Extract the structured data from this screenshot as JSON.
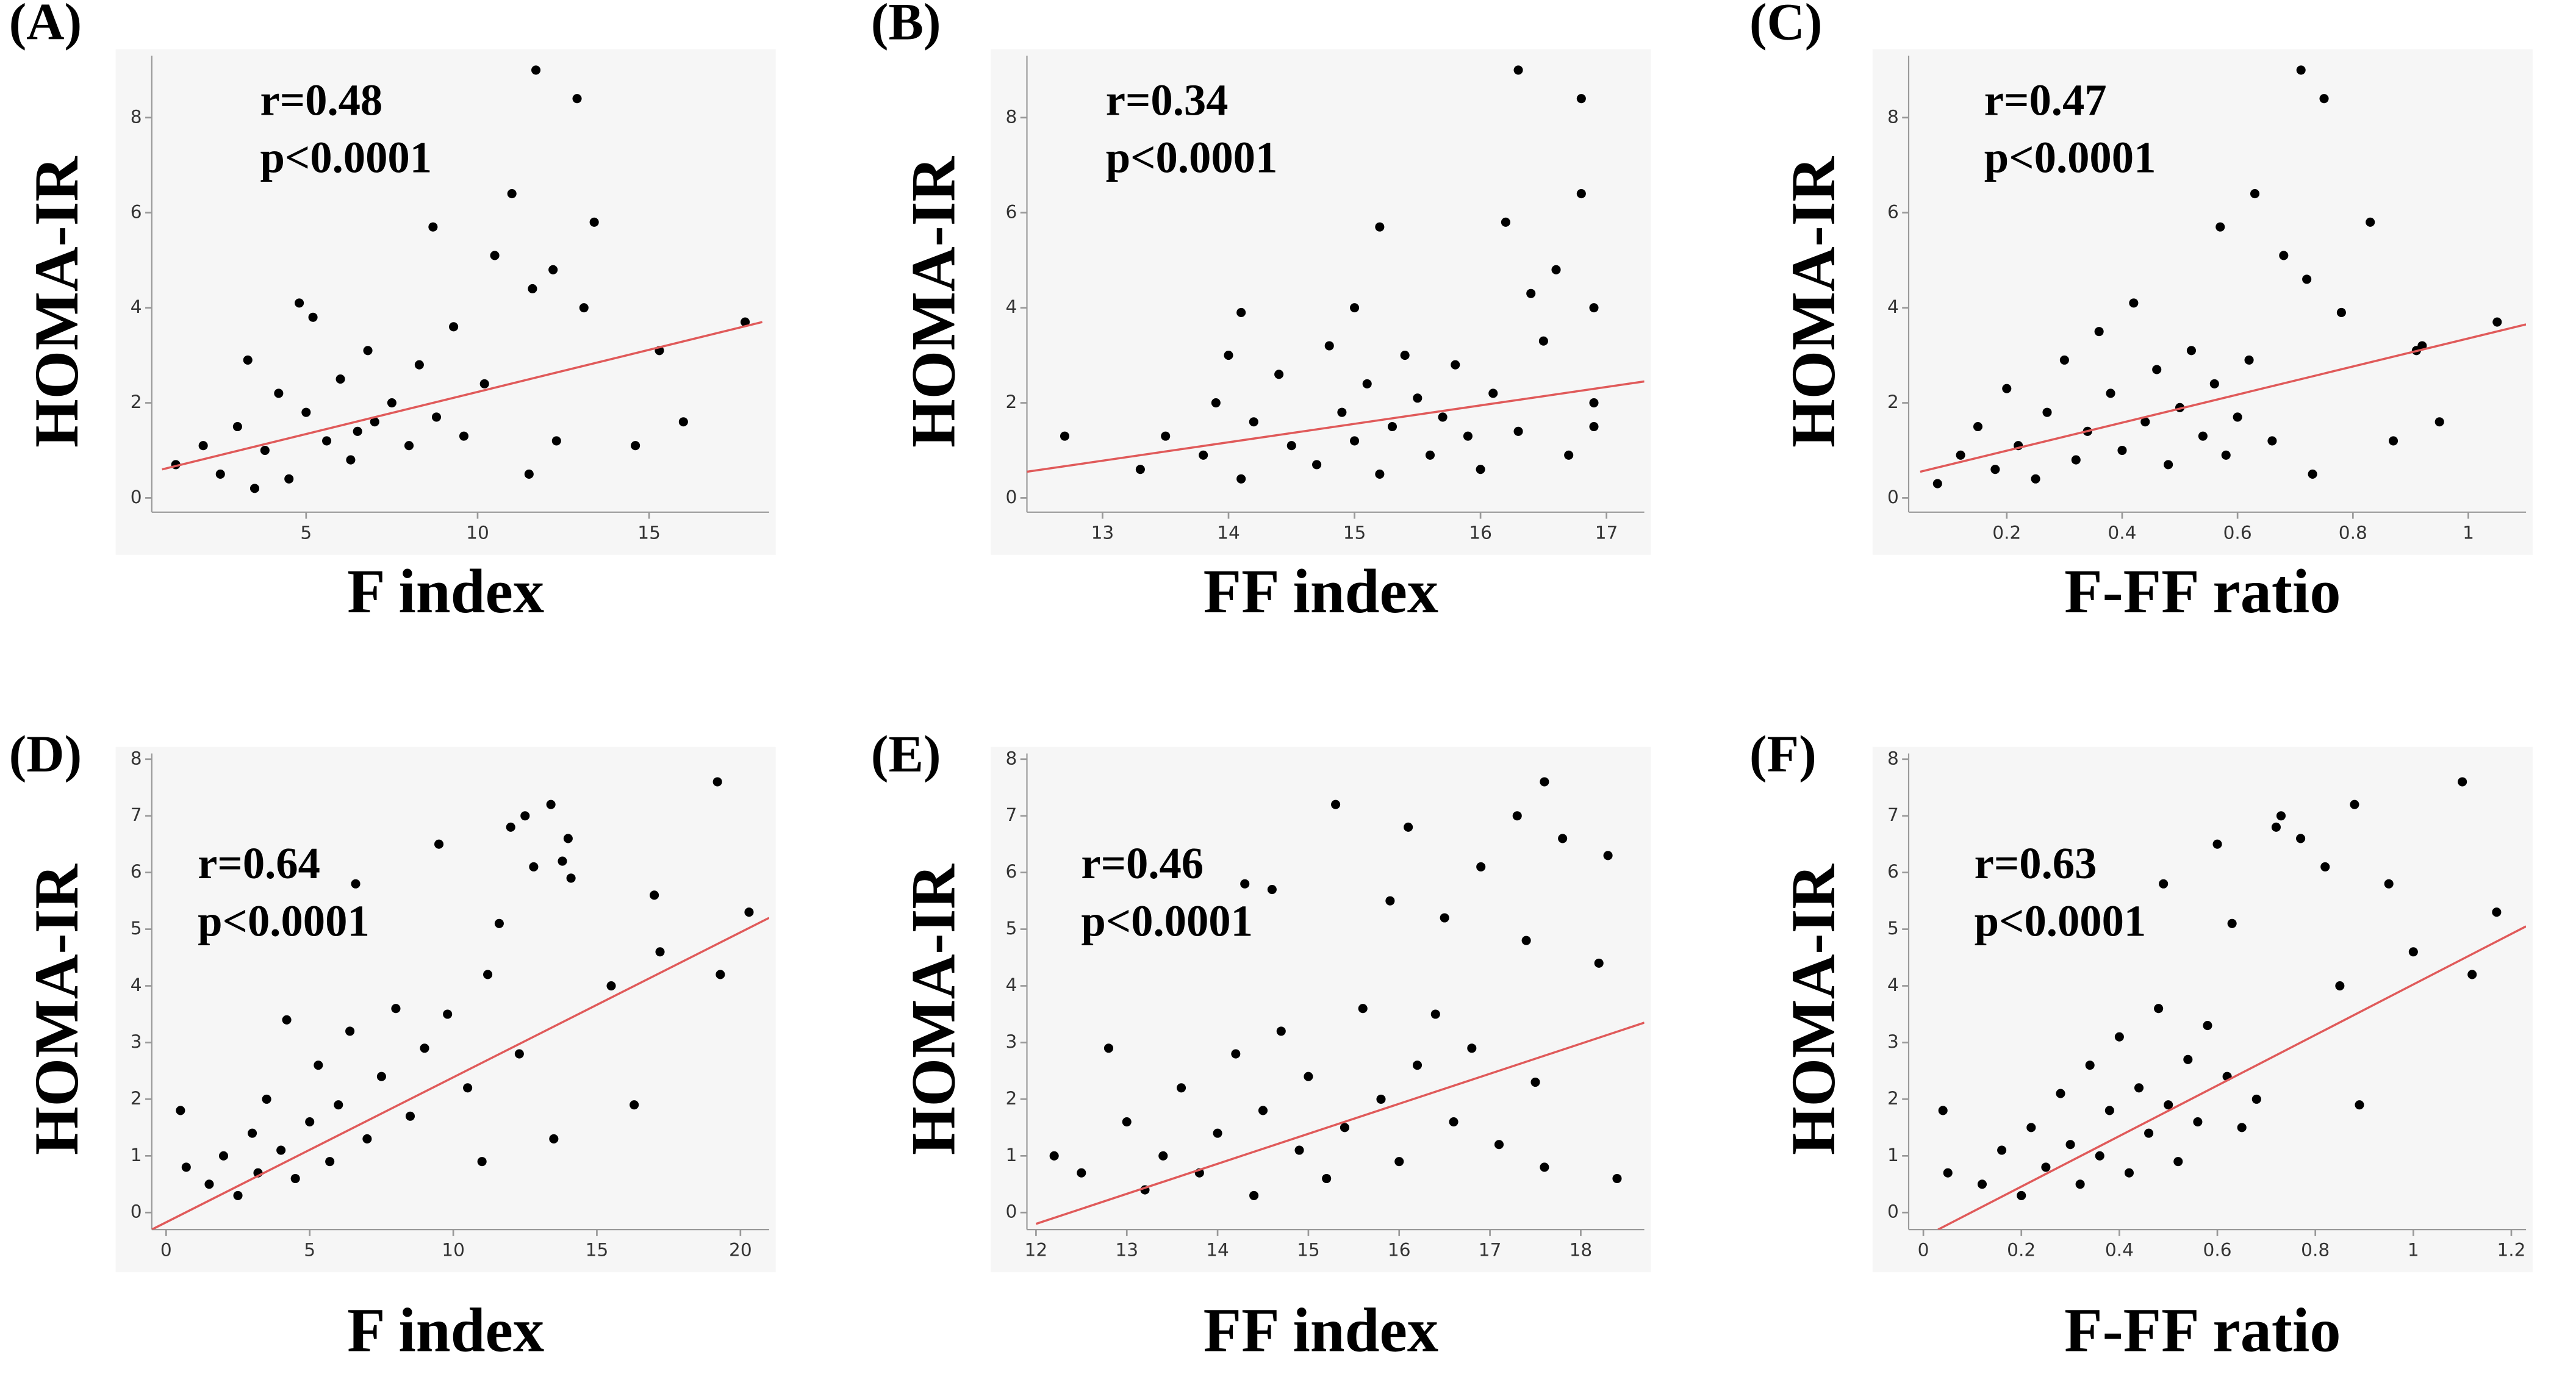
{
  "chart_data": [
    {
      "type": "scatter",
      "panel_label": "(A)",
      "x_label": "F index",
      "y_label": "HOMA-IR",
      "annotations": [
        "r=0.48",
        "p<0.0001"
      ],
      "color": "#000000",
      "xlim": [
        0.5,
        18.5
      ],
      "xticks": [
        5,
        10,
        15
      ],
      "ylim": [
        -0.3,
        9.3
      ],
      "yticks": [
        0,
        2,
        4,
        6,
        8
      ],
      "x": [
        11.7,
        12.9,
        8.7,
        11,
        13.4,
        10.5,
        12.2,
        11.6,
        13.1,
        16,
        14.6,
        15.3,
        17.8,
        12.3,
        11.5,
        1.2,
        2,
        2.5,
        3,
        3.3,
        3.8,
        4.2,
        4.5,
        5,
        5.2,
        5.6,
        6,
        6.3,
        6.8,
        7,
        7.5,
        8,
        8.3,
        8.8,
        9.3,
        9.6,
        10.2,
        4.8,
        3.5,
        6.5
      ],
      "y": [
        9.0,
        8.4,
        5.7,
        6.4,
        5.8,
        5.1,
        4.8,
        4.4,
        4.0,
        1.6,
        1.1,
        3.1,
        3.7,
        1.2,
        0.5,
        0.7,
        1.1,
        0.5,
        1.5,
        2.9,
        1.0,
        2.2,
        0.4,
        1.8,
        3.8,
        1.2,
        2.5,
        0.8,
        3.1,
        1.6,
        2.0,
        1.1,
        2.8,
        1.7,
        3.6,
        1.3,
        2.4,
        4.1,
        0.2,
        1.4
      ],
      "trend_line": {
        "x": [
          0.8,
          18.3
        ],
        "y": [
          0.6,
          3.7
        ],
        "color": "#e05a5a"
      }
    },
    {
      "type": "scatter",
      "panel_label": "(B)",
      "x_label": "FF index",
      "y_label": "HOMA-IR",
      "annotations": [
        "r=0.34",
        "p<0.0001"
      ],
      "color": "#000000",
      "xlim": [
        12.4,
        17.3
      ],
      "xticks": [
        13,
        14,
        15,
        16,
        17
      ],
      "ylim": [
        -0.3,
        9.3
      ],
      "yticks": [
        0,
        2,
        4,
        6,
        8
      ],
      "x": [
        16.3,
        16.8,
        15.2,
        16.8,
        16.2,
        16.6,
        16.4,
        12.7,
        16.9,
        16.9,
        15,
        14.1,
        13.3,
        13.5,
        13.8,
        13.9,
        14.1,
        14.2,
        14.4,
        14.5,
        14.7,
        14.8,
        14.9,
        15.0,
        15.1,
        15.2,
        15.3,
        15.4,
        15.5,
        15.6,
        15.7,
        15.8,
        15.9,
        16.0,
        16.1,
        16.3,
        16.5,
        16.7,
        16.9,
        14.0
      ],
      "y": [
        9.0,
        8.4,
        5.7,
        6.4,
        5.8,
        4.8,
        4.3,
        1.3,
        4.0,
        1.5,
        4.0,
        3.9,
        0.6,
        1.3,
        0.9,
        2.0,
        0.4,
        1.6,
        2.6,
        1.1,
        0.7,
        3.2,
        1.8,
        1.2,
        2.4,
        0.5,
        1.5,
        3.0,
        2.1,
        0.9,
        1.7,
        2.8,
        1.3,
        0.6,
        2.2,
        1.4,
        3.3,
        0.9,
        2.0,
        3.0
      ],
      "trend_line": {
        "x": [
          12.4,
          17.3
        ],
        "y": [
          0.55,
          2.45
        ],
        "color": "#e05a5a"
      }
    },
    {
      "type": "scatter",
      "panel_label": "(C)",
      "x_label": "F-FF ratio",
      "y_label": "HOMA-IR",
      "annotations": [
        "r=0.47",
        "p<0.0001"
      ],
      "color": "#000000",
      "xlim": [
        0.03,
        1.1
      ],
      "xticks": [
        0.2,
        0.4,
        0.6,
        0.8,
        1
      ],
      "ylim": [
        -0.3,
        9.3
      ],
      "yticks": [
        0,
        2,
        4,
        6,
        8
      ],
      "x": [
        0.71,
        0.75,
        0.57,
        0.63,
        0.83,
        0.68,
        0.72,
        0.78,
        0.91,
        0.95,
        0.87,
        1.05,
        0.73,
        0.92,
        0.08,
        0.12,
        0.15,
        0.18,
        0.2,
        0.22,
        0.25,
        0.27,
        0.3,
        0.32,
        0.34,
        0.36,
        0.38,
        0.4,
        0.42,
        0.44,
        0.46,
        0.48,
        0.5,
        0.52,
        0.54,
        0.56,
        0.58,
        0.6,
        0.62,
        0.66
      ],
      "y": [
        9.0,
        8.4,
        5.7,
        6.4,
        5.8,
        5.1,
        4.6,
        3.9,
        3.1,
        1.6,
        1.2,
        3.7,
        0.5,
        3.2,
        0.3,
        0.9,
        1.5,
        0.6,
        2.3,
        1.1,
        0.4,
        1.8,
        2.9,
        0.8,
        1.4,
        3.5,
        2.2,
        1.0,
        4.1,
        1.6,
        2.7,
        0.7,
        1.9,
        3.1,
        1.3,
        2.4,
        0.9,
        1.7,
        2.9,
        1.2
      ],
      "trend_line": {
        "x": [
          0.05,
          1.1
        ],
        "y": [
          0.55,
          3.65
        ],
        "color": "#e05a5a"
      }
    },
    {
      "type": "scatter",
      "panel_label": "(D)",
      "x_label": "F index",
      "y_label": "HOMA-IR",
      "annotations": [
        "r=0.64",
        "p<0.0001"
      ],
      "color": "#000000",
      "xlim": [
        -0.5,
        21
      ],
      "xticks": [
        0,
        5,
        10,
        15,
        20
      ],
      "ylim": [
        -0.3,
        8.1
      ],
      "yticks": [
        0,
        1,
        2,
        3,
        4,
        5,
        6,
        7,
        8
      ],
      "x": [
        19.2,
        13.4,
        12.5,
        14,
        12,
        9.5,
        13.8,
        12.8,
        14.1,
        6.6,
        17,
        20.3,
        11.6,
        17.2,
        19.3,
        15.5,
        16.3,
        13.5,
        11,
        0.5,
        0.7,
        1.5,
        2,
        2.5,
        3,
        3.2,
        3.5,
        4,
        4.2,
        4.5,
        5,
        5.3,
        5.7,
        6,
        6.4,
        7,
        7.5,
        8,
        8.5,
        9,
        9.8,
        10.5,
        11.2,
        12.3
      ],
      "y": [
        7.6,
        7.2,
        7.0,
        6.6,
        6.8,
        6.5,
        6.2,
        6.1,
        5.9,
        5.8,
        5.6,
        5.3,
        5.1,
        4.6,
        4.2,
        4.0,
        1.9,
        1.3,
        0.9,
        1.8,
        0.8,
        0.5,
        1.0,
        0.3,
        1.4,
        0.7,
        2.0,
        1.1,
        3.4,
        0.6,
        1.6,
        2.6,
        0.9,
        1.9,
        3.2,
        1.3,
        2.4,
        3.6,
        1.7,
        2.9,
        3.5,
        2.2,
        4.2,
        2.8
      ],
      "trend_line": {
        "x": [
          -0.5,
          21
        ],
        "y": [
          -0.3,
          5.2
        ],
        "color": "#e05a5a"
      }
    },
    {
      "type": "scatter",
      "panel_label": "(E)",
      "x_label": "FF index",
      "y_label": "HOMA-IR",
      "annotations": [
        "r=0.46",
        "p<0.0001"
      ],
      "color": "#000000",
      "xlim": [
        11.9,
        18.7
      ],
      "xticks": [
        12,
        13,
        14,
        15,
        16,
        17,
        18
      ],
      "ylim": [
        -0.3,
        8.1
      ],
      "yticks": [
        0,
        1,
        2,
        3,
        4,
        5,
        6,
        7,
        8
      ],
      "x": [
        17.6,
        15.3,
        17.3,
        16.1,
        17.8,
        18.3,
        16.9,
        15.9,
        14.3,
        14.6,
        16.5,
        17.4,
        18.2,
        12.8,
        12.2,
        18.4,
        17.6,
        16.4,
        12.5,
        13.0,
        13.2,
        13.4,
        13.6,
        13.8,
        14.0,
        14.2,
        14.4,
        14.5,
        14.7,
        14.9,
        15.0,
        15.2,
        15.4,
        15.6,
        15.8,
        16.0,
        16.2,
        16.6,
        16.8,
        17.1,
        17.5
      ],
      "y": [
        7.6,
        7.2,
        7.0,
        6.8,
        6.6,
        6.3,
        6.1,
        5.5,
        5.8,
        5.7,
        5.2,
        4.8,
        4.4,
        2.9,
        1.0,
        0.6,
        0.8,
        3.5,
        0.7,
        1.6,
        0.4,
        1.0,
        2.2,
        0.7,
        1.4,
        2.8,
        0.3,
        1.8,
        3.2,
        1.1,
        2.4,
        0.6,
        1.5,
        3.6,
        2.0,
        0.9,
        2.6,
        1.6,
        2.9,
        1.2,
        2.3
      ],
      "trend_line": {
        "x": [
          12,
          18.7
        ],
        "y": [
          -0.2,
          3.35
        ],
        "color": "#e05a5a"
      }
    },
    {
      "type": "scatter",
      "panel_label": "(F)",
      "x_label": "F-FF ratio",
      "y_label": "HOMA-IR",
      "annotations": [
        "r=0.63",
        "p<0.0001"
      ],
      "color": "#000000",
      "xlim": [
        -0.03,
        1.23
      ],
      "xticks": [
        0,
        0.2,
        0.4,
        0.6,
        0.8,
        1,
        1.2
      ],
      "ylim": [
        -0.3,
        8.1
      ],
      "yticks": [
        0,
        1,
        2,
        3,
        4,
        5,
        6,
        7,
        8
      ],
      "x": [
        1.1,
        0.88,
        0.73,
        0.72,
        0.77,
        0.6,
        0.82,
        0.95,
        0.49,
        1.17,
        1.0,
        0.63,
        1.12,
        0.89,
        0.65,
        0.04,
        0.05,
        0.85,
        0.12,
        0.16,
        0.2,
        0.22,
        0.25,
        0.28,
        0.3,
        0.32,
        0.34,
        0.36,
        0.38,
        0.4,
        0.42,
        0.44,
        0.46,
        0.48,
        0.5,
        0.52,
        0.54,
        0.56,
        0.58,
        0.62,
        0.68
      ],
      "y": [
        7.6,
        7.2,
        7.0,
        6.8,
        6.6,
        6.5,
        6.1,
        5.8,
        5.8,
        5.3,
        4.6,
        5.1,
        4.2,
        1.9,
        1.5,
        1.8,
        0.7,
        4.0,
        0.5,
        1.1,
        0.3,
        1.5,
        0.8,
        2.1,
        1.2,
        0.5,
        2.6,
        1.0,
        1.8,
        3.1,
        0.7,
        2.2,
        1.4,
        3.6,
        1.9,
        0.9,
        2.7,
        1.6,
        3.3,
        2.4,
        2.0
      ],
      "trend_line": {
        "x": [
          0.03,
          1.23
        ],
        "y": [
          -0.3,
          5.05
        ],
        "color": "#e05a5a"
      }
    }
  ]
}
